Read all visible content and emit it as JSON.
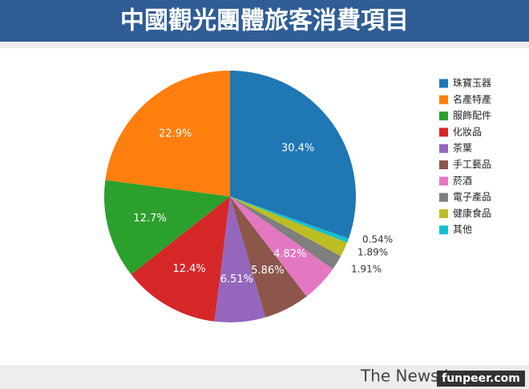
{
  "chart_data": {
    "type": "pie",
    "title": "中國觀光團體旅客消費項目",
    "categories": [
      "珠寶玉器",
      "名產特產",
      "服飾配件",
      "化妝品",
      "茶葉",
      "手工藝品",
      "菸酒",
      "電子產品",
      "健康食品",
      "其他"
    ],
    "values": [
      30.4,
      22.9,
      12.7,
      12.4,
      6.51,
      5.86,
      4.82,
      1.91,
      1.89,
      0.54
    ],
    "value_labels": [
      "30.4%",
      "22.9%",
      "12.7%",
      "12.4%",
      "6.51%",
      "5.86%",
      "4.82%",
      "1.91%",
      "1.89%",
      "0.54%"
    ],
    "colors": [
      "#1f77b4",
      "#ff7f0e",
      "#2ca02c",
      "#d62728",
      "#9467bd",
      "#8c564b",
      "#e377c2",
      "#7f7f7f",
      "#bcbd22",
      "#17becf"
    ],
    "legend": "right",
    "source": "The News Lens",
    "watermark": "funpeer.com"
  }
}
